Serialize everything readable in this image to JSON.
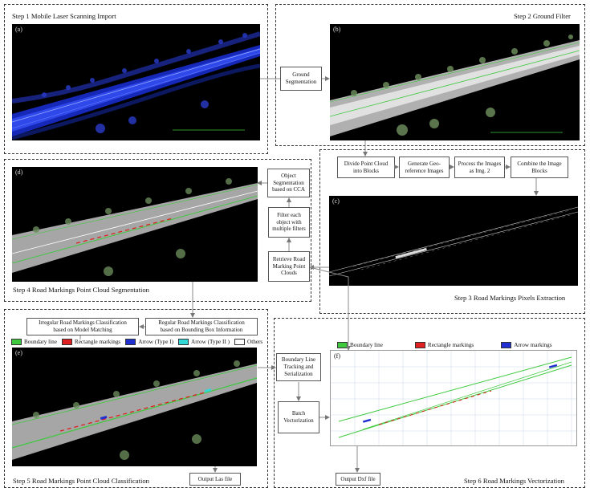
{
  "steps": {
    "s1": "Step 1  Mobile Laser Scanning Import",
    "s2": "Step 2  Ground Filter",
    "s3": "Step 3  Road Markings Pixels Extraction",
    "s4": "Step 4  Road Markings Point Cloud Segmentation",
    "s5": "Step 5  Road Markings Point Cloud Classification",
    "s6": "Step 6  Road Markings Vectorization"
  },
  "panels": {
    "a": "(a)",
    "b": "(b)",
    "c": "(c)",
    "d": "(d)",
    "e": "(e)",
    "f": "(f)"
  },
  "boxes": {
    "ground_seg": "Ground\nSegmentation",
    "divide": "Divide Point Cloud\ninto Blocks",
    "georef": "Generate Geo-\nreference Images",
    "process": "Process the Images\nas Img. 2",
    "combine": "Combine the Image\nBlocks",
    "object_seg": "Object\nSegmentation\nbased on CCA",
    "filter": "Filter each\nobject with\nmultiple filters",
    "retrieve": "Retrieve Road\nMarking Point\nClouds",
    "irregular": "Irregular Road Markings Classification\nbased on Model Matching",
    "regular": "Regular Road Markings Classification\nbased on Bounding Box Information",
    "boundary": "Boundary Line\nTracking and\nSerialization",
    "batch": "Batch\nVectorization",
    "las": "Output Las file",
    "dxf": "Output Dxf file"
  },
  "legend5": [
    {
      "label": "Boundary line",
      "color": "#3ec93e"
    },
    {
      "label": "Rectangle markings",
      "color": "#e02020"
    },
    {
      "label": "Arrow (Type I)",
      "color": "#2030d0"
    },
    {
      "label": "Arrow  (Type II )",
      "color": "#30d8d8"
    },
    {
      "label": "Others",
      "color": "#ffffff"
    }
  ],
  "legend6": [
    {
      "label": "Boundary line",
      "color": "#3ec93e"
    },
    {
      "label": "Rectangle markings",
      "color": "#e02020"
    },
    {
      "label": "Arrow markings",
      "color": "#2030d0"
    }
  ]
}
